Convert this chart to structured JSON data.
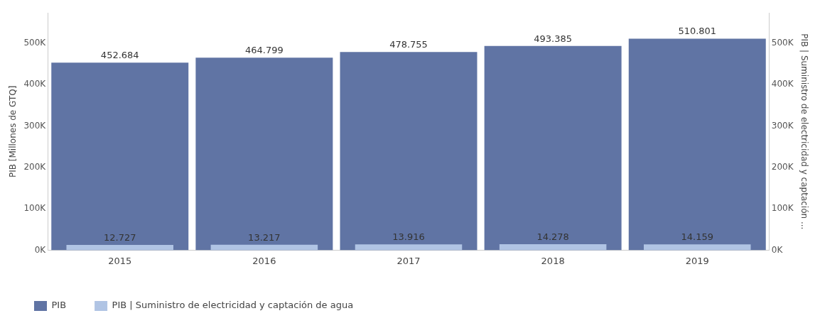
{
  "chart_data": {
    "type": "bar",
    "ylabel": "PIB [Millones de GTQ]",
    "y2label": "PIB | Suministro de electricidad y captación ...",
    "categories": [
      "2015",
      "2016",
      "2017",
      "2018",
      "2019"
    ],
    "series": [
      {
        "name": "PIB",
        "color": "#6074a4",
        "values": [
          452684,
          464799,
          478755,
          493385,
          510801
        ],
        "value_labels": [
          "452.684",
          "464.799",
          "478.755",
          "493.385",
          "510.801"
        ]
      },
      {
        "name": "PIB | Suministro de electricidad y captación de agua",
        "color": "#b0c4e4",
        "axis": "y2",
        "values": [
          12727,
          13217,
          13916,
          14278,
          14159
        ],
        "value_labels": [
          "12.727",
          "13.217",
          "13.916",
          "14.278",
          "14.159"
        ]
      }
    ],
    "ylim": [
      0,
      573000
    ],
    "yticks": [
      {
        "value": 0,
        "label": "0K"
      },
      {
        "value": 100000,
        "label": "100K"
      },
      {
        "value": 200000,
        "label": "200K"
      },
      {
        "value": 300000,
        "label": "300K"
      },
      {
        "value": 400000,
        "label": "400K"
      },
      {
        "value": 500000,
        "label": "500K"
      }
    ],
    "y2lim": [
      0,
      573000
    ],
    "y2ticks": [
      {
        "value": 0,
        "label": "0K"
      },
      {
        "value": 100000,
        "label": "100K"
      },
      {
        "value": 200000,
        "label": "200K"
      },
      {
        "value": 300000,
        "label": "300K"
      },
      {
        "value": 400000,
        "label": "400K"
      },
      {
        "value": 500000,
        "label": "500K"
      }
    ],
    "grid": false,
    "legend": "bottom"
  }
}
